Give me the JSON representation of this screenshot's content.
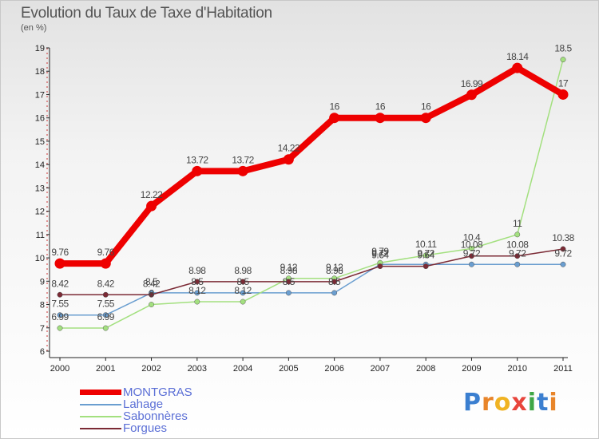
{
  "header": {
    "title": "Evolution du Taux de Taxe d'Habitation",
    "subtitle": "(en %)"
  },
  "logo": {
    "text": "Proxiti"
  },
  "chart_data": {
    "type": "line",
    "title": "Evolution du Taux de Taxe d'Habitation",
    "subtitle": "(en %)",
    "x": [
      "2000",
      "2001",
      "2002",
      "2003",
      "2004",
      "2005",
      "2006",
      "2007",
      "2008",
      "2009",
      "2010",
      "2011"
    ],
    "ylim": [
      6,
      19
    ],
    "yticks": [
      "6",
      "7",
      "8",
      "9",
      "10",
      "11",
      "12",
      "13",
      "14",
      "15",
      "16",
      "17",
      "18",
      "19"
    ],
    "grid": false,
    "legend_position": "bottom-left",
    "series": [
      {
        "name": "MONTGRAS",
        "color": "#ee0000",
        "values": [
          9.76,
          9.76,
          12.22,
          13.72,
          13.72,
          14.22,
          16,
          16,
          16,
          16.99,
          18.14,
          17
        ],
        "labels": [
          "9.76",
          "9.76",
          "12.22",
          "13.72",
          "13.72",
          "14.22",
          "16",
          "16",
          "16",
          "16.99",
          "18.14",
          "17"
        ]
      },
      {
        "name": "Lahage",
        "color": "#6a9ed0",
        "values": [
          7.55,
          7.55,
          8.5,
          8.5,
          8.5,
          8.5,
          8.5,
          9.72,
          9.72,
          9.72,
          9.72,
          9.72
        ],
        "labels": [
          "7.55",
          "7.55",
          "8.5",
          "8.5",
          "8.5",
          "8.5",
          "8.5",
          "9.72",
          "9.72",
          "9.72",
          "9.72",
          "9.72"
        ]
      },
      {
        "name": "Sabonnères",
        "color": "#a3e07f",
        "values": [
          6.99,
          6.99,
          8.0,
          8.12,
          8.12,
          9.12,
          9.12,
          9.79,
          10.11,
          10.4,
          11,
          18.5
        ],
        "labels": [
          "6.99",
          "6.99",
          "8",
          "8.12",
          "8.12",
          "9.12",
          "9.12",
          "9.79",
          "10.11",
          "10.4",
          "11",
          "18.5"
        ]
      },
      {
        "name": "Forgues",
        "color": "#7b2a35",
        "values": [
          8.42,
          8.42,
          8.42,
          8.98,
          8.98,
          8.98,
          8.98,
          9.64,
          9.64,
          10.08,
          10.08,
          10.38
        ],
        "labels": [
          "8.42",
          "8.42",
          "8.42",
          "8.98",
          "8.98",
          "8.98",
          "8.98",
          "9.64",
          "9.64",
          "10.08",
          "10.08",
          "10.38"
        ]
      }
    ]
  }
}
